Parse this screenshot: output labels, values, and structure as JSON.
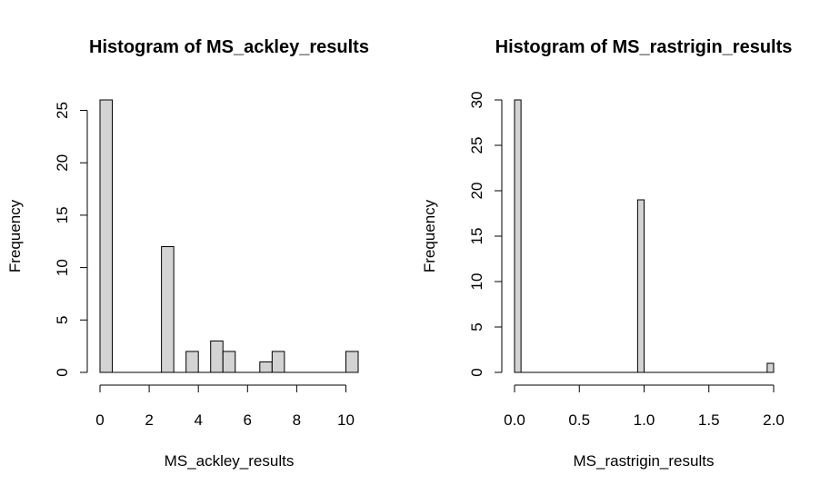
{
  "chart_data": [
    {
      "type": "bar",
      "title": "Histogram of MS_ackley_results",
      "xlabel": "MS_ackley_results",
      "ylabel": "Frequency",
      "xlim": [
        0,
        10.5
      ],
      "ylim": [
        0,
        26
      ],
      "xticks": [
        0,
        2,
        4,
        6,
        8,
        10
      ],
      "xtick_labels": [
        "0",
        "2",
        "4",
        "6",
        "8",
        "10"
      ],
      "yticks": [
        0,
        5,
        10,
        15,
        20,
        25
      ],
      "ytick_labels": [
        "0",
        "5",
        "10",
        "15",
        "20",
        "25"
      ],
      "bin_width": 0.5,
      "bin_edges_start": 0,
      "bins": [
        {
          "x0": 0.0,
          "x1": 0.5,
          "count": 26
        },
        {
          "x0": 0.5,
          "x1": 1.0,
          "count": 0
        },
        {
          "x0": 1.0,
          "x1": 1.5,
          "count": 0
        },
        {
          "x0": 1.5,
          "x1": 2.0,
          "count": 0
        },
        {
          "x0": 2.0,
          "x1": 2.5,
          "count": 0
        },
        {
          "x0": 2.5,
          "x1": 3.0,
          "count": 12
        },
        {
          "x0": 3.0,
          "x1": 3.5,
          "count": 0
        },
        {
          "x0": 3.5,
          "x1": 4.0,
          "count": 2
        },
        {
          "x0": 4.0,
          "x1": 4.5,
          "count": 0
        },
        {
          "x0": 4.5,
          "x1": 5.0,
          "count": 3
        },
        {
          "x0": 5.0,
          "x1": 5.5,
          "count": 2
        },
        {
          "x0": 5.5,
          "x1": 6.0,
          "count": 0
        },
        {
          "x0": 6.0,
          "x1": 6.5,
          "count": 0
        },
        {
          "x0": 6.5,
          "x1": 7.0,
          "count": 1
        },
        {
          "x0": 7.0,
          "x1": 7.5,
          "count": 2
        },
        {
          "x0": 7.5,
          "x1": 8.0,
          "count": 0
        },
        {
          "x0": 8.0,
          "x1": 8.5,
          "count": 0
        },
        {
          "x0": 8.5,
          "x1": 9.0,
          "count": 0
        },
        {
          "x0": 9.0,
          "x1": 9.5,
          "count": 0
        },
        {
          "x0": 9.5,
          "x1": 10.0,
          "count": 0
        },
        {
          "x0": 10.0,
          "x1": 10.5,
          "count": 2
        }
      ],
      "bar_fill": "#d3d3d3",
      "bar_stroke": "#000000",
      "grid": false
    },
    {
      "type": "bar",
      "title": "Histogram of MS_rastrigin_results",
      "xlabel": "MS_rastrigin_results",
      "ylabel": "Frequency",
      "xlim": [
        0,
        2.0
      ],
      "ylim": [
        0,
        30
      ],
      "xticks": [
        0.0,
        0.5,
        1.0,
        1.5,
        2.0
      ],
      "xtick_labels": [
        "0.0",
        "0.5",
        "1.0",
        "1.5",
        "2.0"
      ],
      "yticks": [
        0,
        5,
        10,
        15,
        20,
        25,
        30
      ],
      "ytick_labels": [
        "0",
        "5",
        "10",
        "15",
        "20",
        "25",
        "30"
      ],
      "bin_width": 0.05,
      "bins": [
        {
          "x0": 0.0,
          "x1": 0.05,
          "count": 30
        },
        {
          "x0": 0.95,
          "x1": 1.0,
          "count": 19
        },
        {
          "x0": 1.95,
          "x1": 2.0,
          "count": 1
        }
      ],
      "bar_fill": "#d3d3d3",
      "bar_stroke": "#000000",
      "grid": false
    }
  ]
}
